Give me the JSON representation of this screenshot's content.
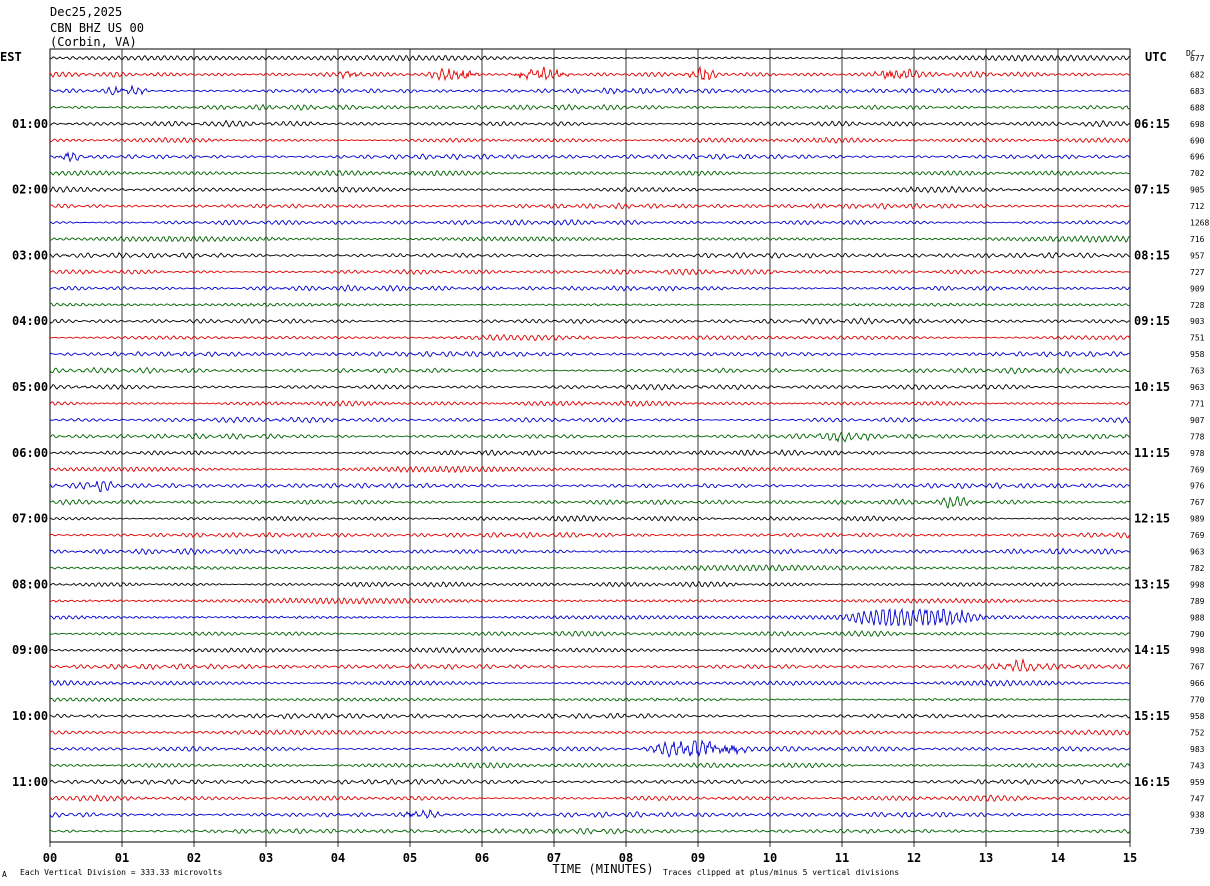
{
  "header": {
    "date": "Dec25,2025",
    "station": "CBN BHZ US 00",
    "location": "(Corbin, VA)"
  },
  "labels": {
    "left_tz": "EST",
    "right_tz": "UTC",
    "right_col": "DC",
    "x_axis_title": "TIME (MINUTES)",
    "footer_left": "Each Vertical Division =  333.33 microvolts",
    "footer_right": "Traces clipped at plus/minus 5 vertical divisions",
    "footer_mark": "A"
  },
  "chart_data": {
    "type": "line",
    "title": "Dec25,2025 CBN BHZ US 00 (Corbin, VA)",
    "xlabel": "TIME (MINUTES)",
    "xlim": [
      0,
      15
    ],
    "x_ticks": [
      "00",
      "01",
      "02",
      "03",
      "04",
      "05",
      "06",
      "07",
      "08",
      "09",
      "10",
      "11",
      "12",
      "13",
      "14",
      "15"
    ],
    "left_time_labels": [
      "01:00",
      "02:00",
      "03:00",
      "04:00",
      "05:00",
      "06:00",
      "07:00",
      "08:00",
      "09:00",
      "10:00",
      "11:00"
    ],
    "right_time_labels": [
      "06:15",
      "07:15",
      "08:15",
      "09:15",
      "10:15",
      "11:15",
      "12:15",
      "13:15",
      "14:15",
      "15:15",
      "16:15"
    ],
    "trace_colors": [
      "#000000",
      "#e00000",
      "#0000d0",
      "#006400"
    ],
    "dc_offsets": [
      "677",
      "682",
      "683",
      "688",
      "698",
      "690",
      "696",
      "702",
      "905",
      "712",
      "1268",
      "716",
      "957",
      "727",
      "909",
      "728",
      "903",
      "751",
      "958",
      "763",
      "963",
      "771",
      "907",
      "778",
      "978",
      "769",
      "976",
      "767",
      "989",
      "769",
      "963",
      "782",
      "998",
      "789",
      "988",
      "790",
      "998",
      "767",
      "966",
      "770",
      "958",
      "752",
      "983",
      "743",
      "959",
      "747",
      "938",
      "739"
    ],
    "events": [
      {
        "trace": 1,
        "start_min": 5.2,
        "end_min": 6.0,
        "amp": 2.2
      },
      {
        "trace": 1,
        "start_min": 6.3,
        "end_min": 7.3,
        "amp": 2.4
      },
      {
        "trace": 1,
        "start_min": 8.8,
        "end_min": 9.3,
        "amp": 1.8
      },
      {
        "trace": 1,
        "start_min": 11.4,
        "end_min": 12.1,
        "amp": 2.0
      },
      {
        "trace": 1,
        "start_min": 4.0,
        "end_min": 4.4,
        "amp": 1.6
      },
      {
        "trace": 2,
        "start_min": 0.7,
        "end_min": 1.4,
        "amp": 1.8
      },
      {
        "trace": 34,
        "start_min": 11.0,
        "end_min": 13.0,
        "amp": 3.6
      },
      {
        "trace": 42,
        "start_min": 8.2,
        "end_min": 9.8,
        "amp": 3.2
      },
      {
        "trace": 26,
        "start_min": 0.4,
        "end_min": 0.9,
        "amp": 1.6
      },
      {
        "trace": 27,
        "start_min": 12.3,
        "end_min": 12.8,
        "amp": 1.5
      },
      {
        "trace": 37,
        "start_min": 13.0,
        "end_min": 14.0,
        "amp": 1.4
      },
      {
        "trace": 46,
        "start_min": 4.8,
        "end_min": 5.6,
        "amp": 1.4
      },
      {
        "trace": 6,
        "start_min": 0.0,
        "end_min": 0.6,
        "amp": 1.3
      },
      {
        "trace": 23,
        "start_min": 10.5,
        "end_min": 11.5,
        "amp": 1.3
      }
    ]
  }
}
